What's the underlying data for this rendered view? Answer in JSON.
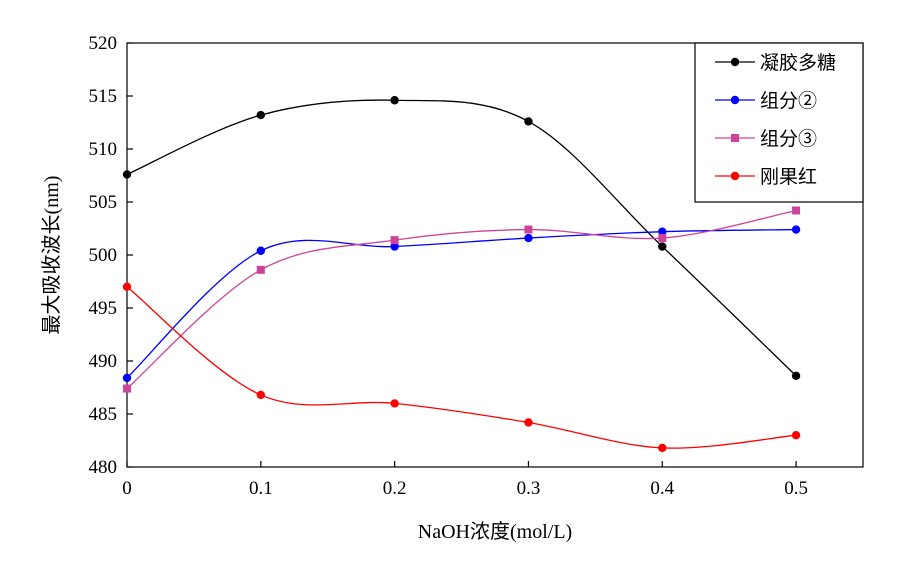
{
  "chart_data": {
    "type": "line",
    "title": "",
    "xlabel": "NaOH浓度(mol/L)",
    "ylabel": "最大吸收波长(nm)",
    "xlim": [
      0,
      0.55
    ],
    "ylim": [
      480,
      520
    ],
    "x_ticks": [
      "0",
      "0.1",
      "0.2",
      "0.3",
      "0.4",
      "0.5"
    ],
    "y_ticks": [
      "480",
      "485",
      "490",
      "495",
      "500",
      "505",
      "510",
      "515",
      "520"
    ],
    "x": [
      0,
      0.1,
      0.2,
      0.3,
      0.4,
      0.5
    ],
    "grid": false,
    "legend_position": "top-right",
    "smooth": true,
    "series": [
      {
        "name": "凝胶多糖",
        "color": "#000000",
        "marker": "circle",
        "values": [
          507.6,
          513.2,
          514.6,
          512.6,
          500.8,
          488.6
        ]
      },
      {
        "name": "组分②",
        "color": "#0000ff",
        "marker": "circle",
        "values": [
          488.4,
          500.4,
          500.8,
          501.6,
          502.2,
          502.4
        ]
      },
      {
        "name": "组分③",
        "color": "#cc4499",
        "marker": "square",
        "values": [
          487.4,
          498.6,
          501.4,
          502.4,
          501.6,
          504.2
        ]
      },
      {
        "name": "刚果红",
        "color": "#ff0000",
        "marker": "circle",
        "values": [
          497.0,
          486.8,
          486.0,
          484.2,
          481.8,
          483.0
        ]
      }
    ]
  }
}
